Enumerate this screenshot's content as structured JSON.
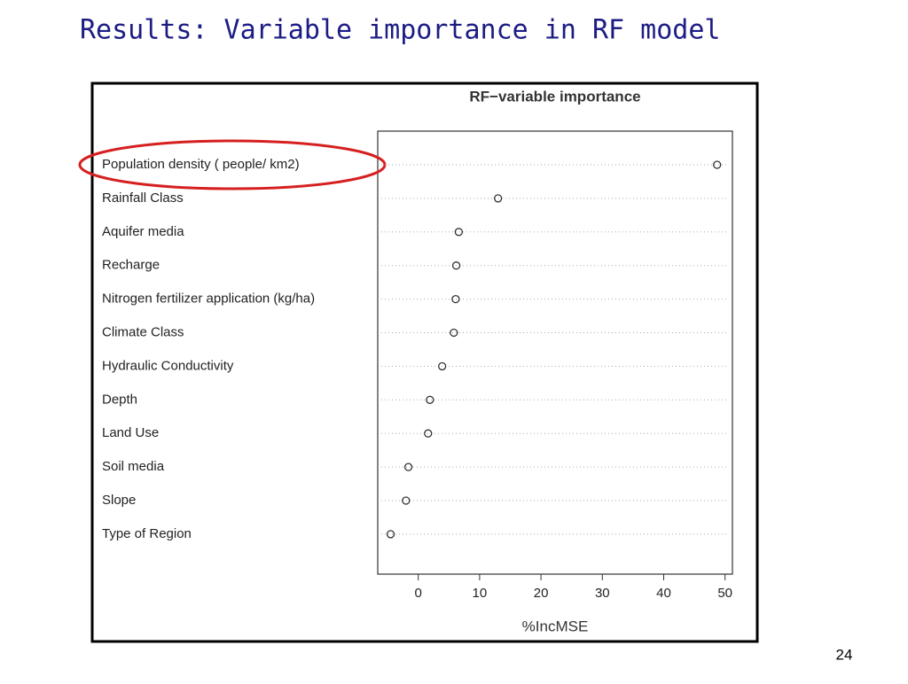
{
  "slide_title": "Results: Variable importance in RF model",
  "page_number": "24",
  "chart_data": {
    "type": "dot",
    "title": "RF−variable importance",
    "xlabel": "%IncMSE",
    "categories": [
      "Population density ( people/ km2)",
      "Rainfall Class",
      "Aquifer media",
      "Recharge",
      "Nitrogen fertilizer application (kg/ha)",
      "Climate Class",
      "Hydraulic Conductivity",
      "Depth",
      "Land Use",
      "Soil media",
      "Slope",
      "Type of Region"
    ],
    "values": [
      48.7,
      13.0,
      6.6,
      6.2,
      6.1,
      5.8,
      3.9,
      1.9,
      1.6,
      -1.6,
      -2.0,
      -4.5
    ],
    "xlim": [
      -6.6,
      51.2
    ],
    "xticks": [
      0,
      10,
      20,
      30,
      40,
      50
    ],
    "color": "#333333"
  }
}
